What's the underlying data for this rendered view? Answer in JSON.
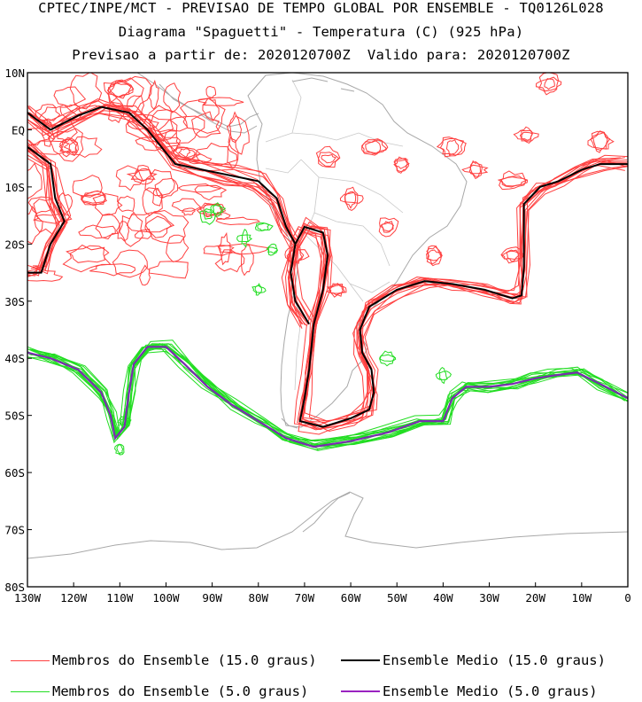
{
  "title": {
    "line1": "CPTEC/INPE/MCT - PREVISAO DE TEMPO GLOBAL POR ENSEMBLE - TQ0126L028",
    "line2": "Diagrama \"Spaguetti\" - Temperatura (C) (925 hPa)",
    "line3": "Previsao a partir de: 2020120700Z  Valido para: 2020120700Z"
  },
  "map": {
    "lon_range": [
      -130,
      0
    ],
    "lat_range": [
      -80,
      10
    ],
    "lon_ticks": [
      "130W",
      "120W",
      "110W",
      "100W",
      "90W",
      "80W",
      "70W",
      "60W",
      "50W",
      "40W",
      "30W",
      "20W",
      "10W",
      "0"
    ],
    "lat_ticks": [
      "10N",
      "EQ",
      "10S",
      "20S",
      "30S",
      "40S",
      "50S",
      "60S",
      "70S",
      "80S"
    ]
  },
  "colors": {
    "member15": "#ff4040",
    "mean15": "#000000",
    "member5": "#22dd22",
    "mean5": "#7a2bb0",
    "coast": "#a8a8a8",
    "border": "#c8c8c8"
  },
  "legend": {
    "member15": "Membros do Ensemble (15.0 graus)",
    "mean15": "Ensemble Medio (15.0 graus)",
    "member5": "Membros do Ensemble (5.0 graus)",
    "mean5": "Ensemble Medio (5.0 graus)"
  },
  "contours": {
    "mean15_east": [
      [
        -69,
        -34
      ],
      [
        -72,
        -30
      ],
      [
        -73,
        -25
      ],
      [
        -72,
        -20
      ],
      [
        -70,
        -17
      ],
      [
        -66,
        -18
      ],
      [
        -65,
        -22
      ],
      [
        -66,
        -28
      ],
      [
        -68,
        -34
      ],
      [
        -69,
        -42
      ],
      [
        -70,
        -47
      ],
      [
        -71,
        -51
      ],
      [
        -66,
        -52
      ],
      [
        -60,
        -50.5
      ],
      [
        -56,
        -49
      ],
      [
        -55,
        -46
      ],
      [
        -55.5,
        -42
      ],
      [
        -57.5,
        -39
      ],
      [
        -58,
        -35
      ],
      [
        -56,
        -31
      ],
      [
        -50,
        -28
      ],
      [
        -44,
        -26.5
      ],
      [
        -38,
        -27
      ],
      [
        -31,
        -28
      ],
      [
        -25,
        -29.5
      ],
      [
        -23,
        -29
      ],
      [
        -22.5,
        -24
      ],
      [
        -22.5,
        -13
      ],
      [
        -19,
        -10
      ],
      [
        -15,
        -9
      ],
      [
        -10,
        -7
      ],
      [
        -6,
        -6
      ],
      [
        0,
        -6
      ]
    ],
    "mean15_west": [
      [
        -130,
        -3
      ],
      [
        -125,
        -6
      ],
      [
        -124,
        -12
      ],
      [
        -122,
        -16
      ],
      [
        -125,
        -20
      ],
      [
        -127,
        -25
      ],
      [
        -130,
        -25
      ]
    ],
    "mean15_north": [
      [
        -130,
        3
      ],
      [
        -125,
        0
      ],
      [
        -119,
        2.5
      ],
      [
        -114,
        4
      ],
      [
        -108,
        3
      ],
      [
        -104,
        0
      ],
      [
        -101,
        -3
      ],
      [
        -98,
        -6
      ],
      [
        -92,
        -7
      ],
      [
        -86,
        -8
      ],
      [
        -80,
        -9
      ],
      [
        -76,
        -12
      ],
      [
        -74,
        -17
      ],
      [
        -72,
        -20
      ]
    ],
    "mean5": [
      [
        -130,
        -39
      ],
      [
        -125,
        -40
      ],
      [
        -119,
        -42
      ],
      [
        -114,
        -46
      ],
      [
        -112,
        -50
      ],
      [
        -111,
        -54
      ],
      [
        -109,
        -52
      ],
      [
        -108,
        -46
      ],
      [
        -107,
        -41
      ],
      [
        -104,
        -38
      ],
      [
        -100,
        -38
      ],
      [
        -96,
        -41
      ],
      [
        -91,
        -45
      ],
      [
        -86,
        -48
      ],
      [
        -80,
        -51
      ],
      [
        -74,
        -54
      ],
      [
        -68,
        -55.5
      ],
      [
        -60,
        -54.5
      ],
      [
        -52,
        -53
      ],
      [
        -45,
        -51
      ],
      [
        -40,
        -51
      ],
      [
        -38,
        -47
      ],
      [
        -35,
        -45
      ],
      [
        -30,
        -45
      ],
      [
        -25,
        -44.5
      ],
      [
        -20,
        -43.5
      ],
      [
        -16,
        -43
      ],
      [
        -11,
        -42.5
      ],
      [
        -6,
        -44.5
      ],
      [
        0,
        -47
      ]
    ]
  }
}
